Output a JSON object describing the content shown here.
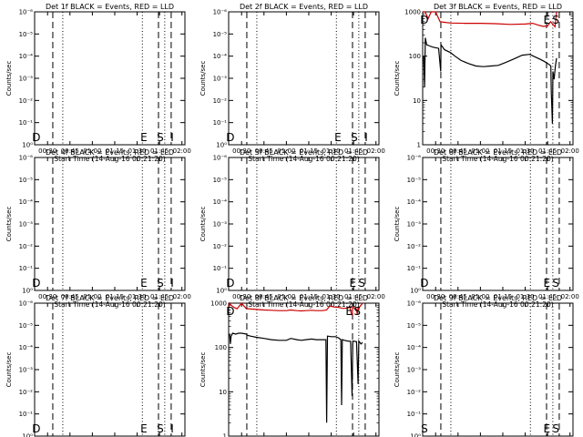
{
  "figure": {
    "xlabel": "Start Time (14-Aug-16 00:21:20)",
    "xticks": [
      "00:30",
      "00:45",
      "01:00",
      "01:15",
      "01:30",
      "01:45",
      "02:00"
    ],
    "xtick_minutes": [
      30,
      45,
      60,
      75,
      90,
      105,
      120
    ],
    "xlim_minutes": [
      21.33,
      122
    ],
    "ylabel": "Counts/sec",
    "empty_yticks": [
      "10⁻⁶",
      "10⁻⁵",
      "10⁻⁴",
      "10⁻³",
      "10⁻²",
      "10⁻¹",
      "10⁰"
    ],
    "log_yticks": [
      "1",
      "10",
      "100",
      "1000"
    ],
    "series_colors": {
      "events": "#000000",
      "lld": "#cc0000"
    },
    "markers": {
      "dashed_min": [
        33.5,
        104.3,
        112.8
      ],
      "dotted_min": [
        40.2,
        93.5,
        108.5
      ]
    }
  },
  "chart_data": [
    {
      "type": "line",
      "title": "Det 1f BLACK = Events, RED = LLD",
      "scale": "empty",
      "letters": [
        {
          "t": "D",
          "x": 22.5
        },
        {
          "t": "E",
          "x": 94.5
        },
        {
          "t": "S",
          "x": 105.5
        },
        {
          "t": "I",
          "x": 113.5
        }
      ]
    },
    {
      "type": "line",
      "title": "Det 2f BLACK = Events, RED = LLD",
      "scale": "empty",
      "letters": [
        {
          "t": "D",
          "x": 22.5
        },
        {
          "t": "E",
          "x": 94.5
        },
        {
          "t": "S",
          "x": 105.5
        },
        {
          "t": "I",
          "x": 113.5
        }
      ]
    },
    {
      "type": "line",
      "title": "Det 3f BLACK = Events, RED = LLD",
      "scale": "log",
      "ylim": [
        1,
        1000
      ],
      "letters": [
        {
          "t": "D",
          "x": 22.5
        },
        {
          "t": "E",
          "x": 104.5
        },
        {
          "t": "S",
          "x": 110.5
        }
      ],
      "series": [
        {
          "name": "LLD",
          "color": "#cc0000",
          "points": [
            [
              21.5,
              1000
            ],
            [
              23,
              1000
            ],
            [
              25,
              700
            ],
            [
              27,
              1000
            ],
            [
              30,
              1000
            ],
            [
              33,
              600
            ],
            [
              36,
              580
            ],
            [
              40,
              560
            ],
            [
              50,
              550
            ],
            [
              60,
              550
            ],
            [
              70,
              540
            ],
            [
              80,
              520
            ],
            [
              90,
              530
            ],
            [
              95,
              550
            ],
            [
              99,
              500
            ],
            [
              102,
              470
            ],
            [
              105,
              480
            ],
            [
              107,
              600
            ],
            [
              108.5,
              520
            ],
            [
              110,
              460
            ],
            [
              111,
              1000
            ]
          ]
        },
        {
          "name": "Events",
          "color": "#000000",
          "points": [
            [
              22,
              100
            ],
            [
              22.6,
              20
            ],
            [
              23.1,
              260
            ],
            [
              24,
              180
            ],
            [
              26,
              170
            ],
            [
              28,
              160
            ],
            [
              30,
              155
            ],
            [
              32,
              150
            ],
            [
              33.4,
              45
            ],
            [
              33.6,
              180
            ],
            [
              36,
              140
            ],
            [
              40,
              120
            ],
            [
              43,
              100
            ],
            [
              47,
              80
            ],
            [
              52,
              68
            ],
            [
              57,
              60
            ],
            [
              62,
              58
            ],
            [
              67,
              60
            ],
            [
              72,
              62
            ],
            [
              77,
              72
            ],
            [
              82,
              85
            ],
            [
              88,
              105
            ],
            [
              93,
              110
            ],
            [
              97,
              95
            ],
            [
              100,
              85
            ],
            [
              103,
              75
            ],
            [
              106,
              65
            ],
            [
              107.2,
              60
            ],
            [
              107.5,
              15
            ],
            [
              107.8,
              8
            ],
            [
              108.2,
              3
            ],
            [
              108.6,
              45
            ],
            [
              109.4,
              30
            ],
            [
              110.2,
              60
            ],
            [
              111,
              90
            ]
          ]
        }
      ]
    },
    {
      "type": "line",
      "title": "Det 4f BLACK = Events, RED = LLD",
      "scale": "empty",
      "letters": [
        {
          "t": "D",
          "x": 22.5
        },
        {
          "t": "E",
          "x": 94.5
        },
        {
          "t": "S",
          "x": 105.5
        },
        {
          "t": "I",
          "x": 113.5
        }
      ]
    },
    {
      "type": "line",
      "title": "Det 5f BLACK = Events, RED = LLD",
      "scale": "empty",
      "letters": [
        {
          "t": "D",
          "x": 22.5
        },
        {
          "t": "E",
          "x": 104.5
        },
        {
          "t": "S",
          "x": 110.5
        }
      ]
    },
    {
      "type": "line",
      "title": "Det 6f BLACK = Events, RED = LLD",
      "scale": "empty",
      "letters": [
        {
          "t": "D",
          "x": 22.5
        },
        {
          "t": "E",
          "x": 104.5
        },
        {
          "t": "S",
          "x": 110.5
        }
      ]
    },
    {
      "type": "line",
      "title": "Det 7f BLACK = Events, RED = LLD",
      "scale": "empty",
      "letters": [
        {
          "t": "D",
          "x": 22.5
        },
        {
          "t": "E",
          "x": 94.5
        },
        {
          "t": "S",
          "x": 105.5
        },
        {
          "t": "I",
          "x": 113.5
        }
      ]
    },
    {
      "type": "line",
      "title": "Det 8f BLACK = Events, RED = LLD",
      "scale": "log",
      "ylim": [
        1,
        1000
      ],
      "letters": [
        {
          "t": "D",
          "x": 22.5
        },
        {
          "t": "E",
          "x": 102
        },
        {
          "t": "S",
          "x": 107.5
        }
      ],
      "series": [
        {
          "name": "LLD",
          "color": "#cc0000",
          "points": [
            [
              21.5,
              800
            ],
            [
              22,
              1000
            ],
            [
              23,
              900
            ],
            [
              25,
              800
            ],
            [
              27,
              750
            ],
            [
              30,
              1000
            ],
            [
              33,
              760
            ],
            [
              36,
              740
            ],
            [
              40,
              720
            ],
            [
              45,
              700
            ],
            [
              50,
              690
            ],
            [
              55,
              680
            ],
            [
              60,
              680
            ],
            [
              63,
              700
            ],
            [
              67,
              680
            ],
            [
              70,
              670
            ],
            [
              73,
              680
            ],
            [
              77,
              690
            ],
            [
              80,
              680
            ],
            [
              84,
              680
            ],
            [
              87,
              700
            ],
            [
              89,
              860
            ],
            [
              92,
              820
            ],
            [
              95,
              800
            ],
            [
              98,
              760
            ],
            [
              101,
              780
            ],
            [
              102.5,
              820
            ],
            [
              103,
              700
            ],
            [
              103.5,
              560
            ],
            [
              104,
              540
            ],
            [
              104.5,
              800
            ],
            [
              105.5,
              780
            ],
            [
              106,
              800
            ],
            [
              107,
              720
            ],
            [
              107.5,
              560
            ],
            [
              108,
              780
            ],
            [
              108.5,
              740
            ],
            [
              109,
              820
            ],
            [
              110,
              900
            ],
            [
              111,
              1000
            ]
          ]
        },
        {
          "name": "Events",
          "color": "#000000",
          "points": [
            [
              22,
              200
            ],
            [
              22.5,
              120
            ],
            [
              23,
              180
            ],
            [
              24,
              210
            ],
            [
              26,
              200
            ],
            [
              28,
              210
            ],
            [
              30,
              210
            ],
            [
              33.4,
              200
            ],
            [
              33.6,
              190
            ],
            [
              36,
              180
            ],
            [
              40,
              170
            ],
            [
              45,
              160
            ],
            [
              50,
              150
            ],
            [
              55,
              145
            ],
            [
              60,
              145
            ],
            [
              63,
              160
            ],
            [
              67,
              150
            ],
            [
              70,
              145
            ],
            [
              73,
              150
            ],
            [
              77,
              155
            ],
            [
              80,
              150
            ],
            [
              84,
              150
            ],
            [
              86.5,
              150
            ],
            [
              87,
              2
            ],
            [
              87.5,
              180
            ],
            [
              90,
              175
            ],
            [
              93,
              175
            ],
            [
              95,
              165
            ],
            [
              96.5,
              150
            ],
            [
              97,
              5
            ],
            [
              97.5,
              150
            ],
            [
              99,
              145
            ],
            [
              101,
              140
            ],
            [
              103,
              138
            ],
            [
              104,
              8
            ],
            [
              104.5,
              140
            ],
            [
              107,
              135
            ],
            [
              108,
              15
            ],
            [
              108.5,
              140
            ],
            [
              110,
              120
            ],
            [
              111,
              130
            ]
          ]
        }
      ]
    },
    {
      "type": "line",
      "title": "Det 9f BLACK = Events, RED = LLD",
      "scale": "empty",
      "letters": [
        {
          "t": "S",
          "x": 22.5
        },
        {
          "t": "E",
          "x": 104.5
        },
        {
          "t": "S",
          "x": 110.5
        }
      ]
    }
  ]
}
